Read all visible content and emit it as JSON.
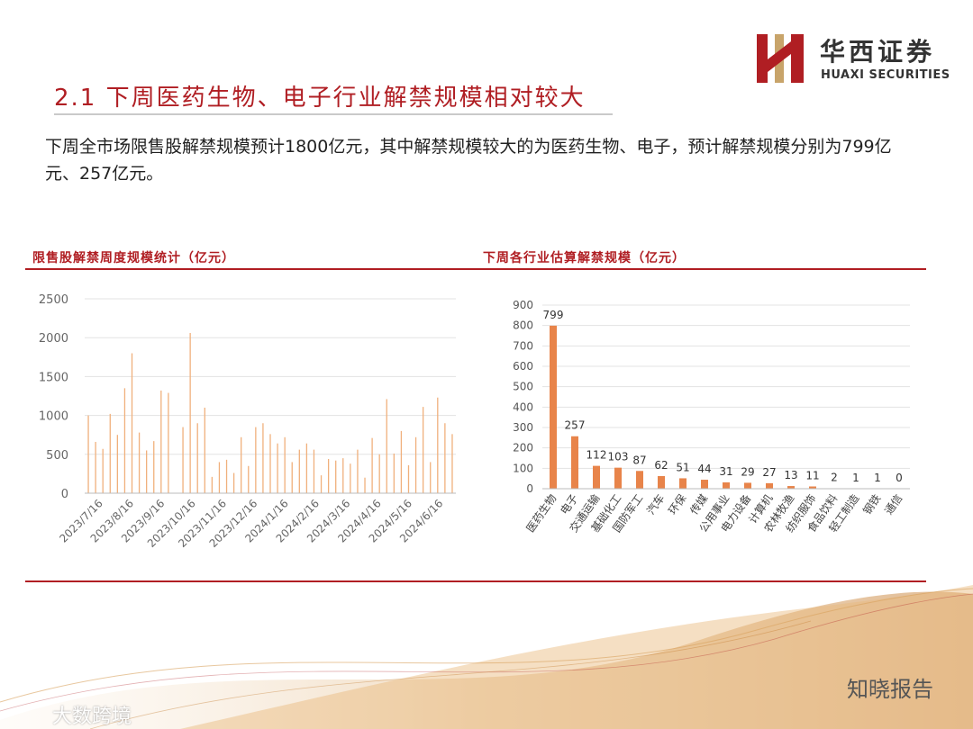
{
  "header": {
    "logo_cn": "华西证券",
    "logo_en": "HUAXI SECURITIES",
    "title": "2.1 下周医药生物、电子行业解禁规模相对较大",
    "intro": "下周全市场限售股解禁规模预计1800亿元，其中解禁规模较大的为医药生物、电子，预计解禁规模分别为799亿元、257亿元。"
  },
  "watermarks": {
    "left": "大数跨境",
    "right": "知晓报告"
  },
  "colors": {
    "brand_red": "#b01e23",
    "bar_orange": "#e8844a",
    "line_orange": "#f0b07c"
  },
  "chart_data": [
    {
      "type": "bar",
      "title": "限售股解禁周度规模统计（亿元）",
      "ylim": [
        0,
        2500
      ],
      "yticks": [
        0,
        500,
        1000,
        1500,
        2000,
        2500
      ],
      "x_tick_labels": [
        "2023/7/16",
        "2023/8/16",
        "2023/9/16",
        "2023/10/16",
        "2023/11/16",
        "2023/12/16",
        "2024/1/16",
        "2024/2/16",
        "2024/3/16",
        "2024/4/16",
        "2024/5/16",
        "2024/6/16"
      ],
      "values": [
        1000,
        660,
        570,
        1020,
        750,
        1350,
        1800,
        780,
        550,
        670,
        1320,
        1290,
        0,
        850,
        2060,
        900,
        1100,
        210,
        400,
        430,
        260,
        720,
        350,
        850,
        900,
        760,
        640,
        720,
        400,
        560,
        640,
        560,
        230,
        440,
        420,
        450,
        380,
        560,
        200,
        710,
        500,
        1210,
        510,
        800,
        360,
        720,
        1110,
        400,
        1230,
        900,
        760
      ],
      "grid": true
    },
    {
      "type": "bar",
      "title": "下周各行业估算解禁规模（亿元）",
      "categories": [
        "医药生物",
        "电子",
        "交通运输",
        "基础化工",
        "国防军工",
        "汽车",
        "环保",
        "传媒",
        "公用事业",
        "电力设备",
        "计算机",
        "农林牧渔",
        "纺织服饰",
        "食品饮料",
        "轻工制造",
        "钢铁",
        "通信"
      ],
      "values": [
        799,
        257,
        112,
        103,
        87,
        62,
        51,
        44,
        31,
        29,
        27,
        13,
        11,
        2,
        1,
        1,
        0
      ],
      "ylim": [
        0,
        900
      ],
      "yticks": [
        0,
        100,
        200,
        300,
        400,
        500,
        600,
        700,
        800,
        900
      ],
      "grid": true
    }
  ]
}
